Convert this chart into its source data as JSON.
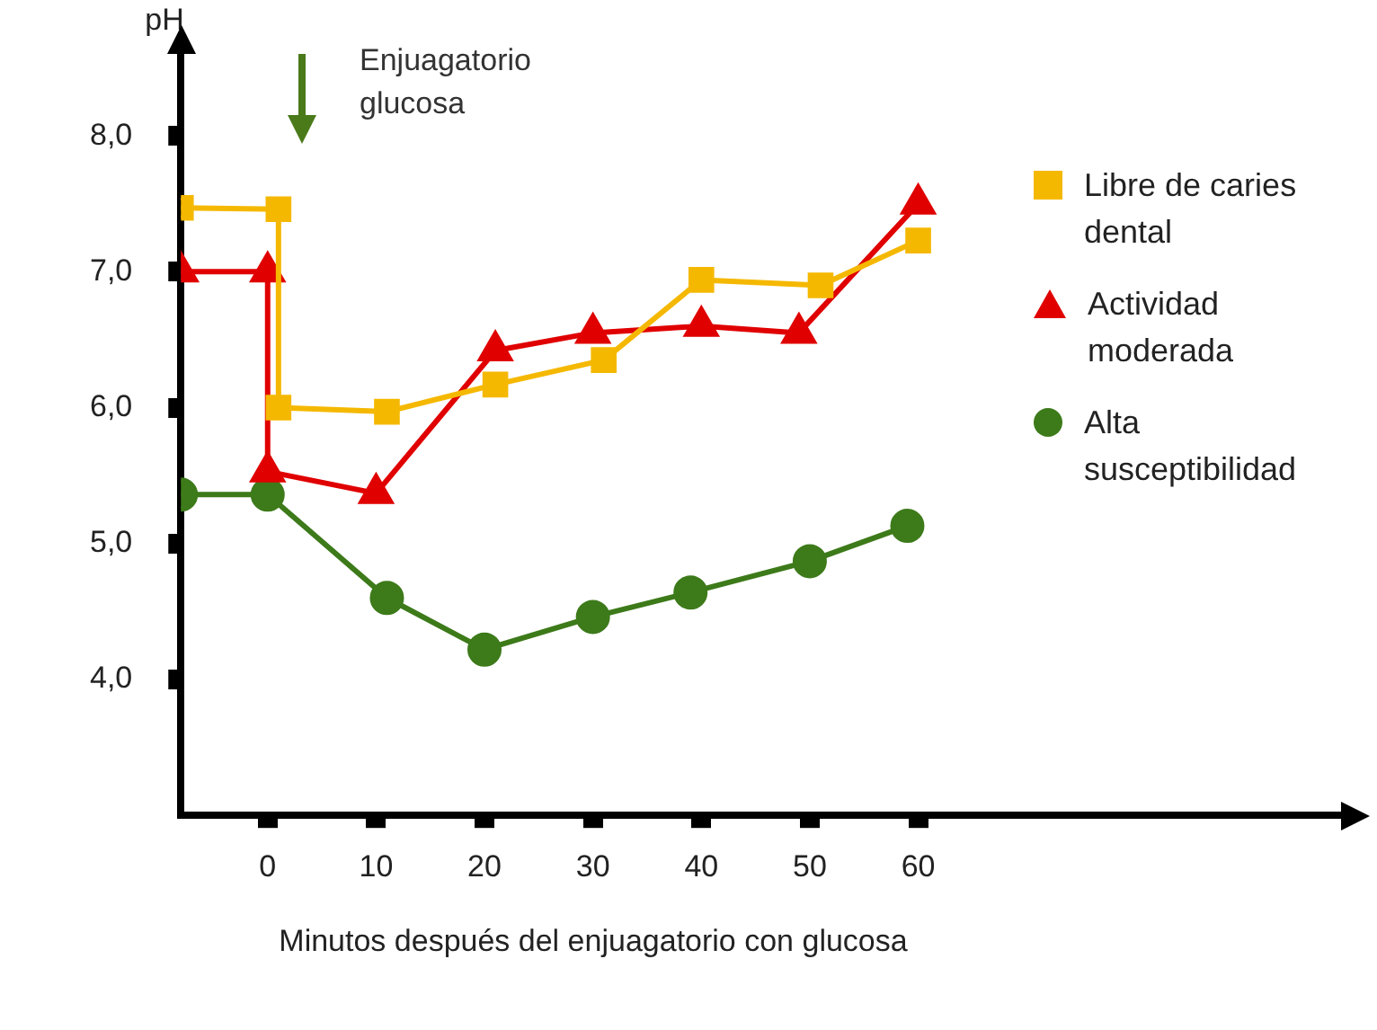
{
  "chart_data": {
    "type": "line",
    "xlabel": "Minutos después del enjuagatorio con glucosa",
    "ylabel": "pH",
    "xlim": [
      -8,
      99
    ],
    "xticks": [
      0,
      10,
      20,
      30,
      40,
      50,
      60
    ],
    "ylim": [
      3,
      8.6
    ],
    "yticks": [
      {
        "value": 4,
        "label": "4,0"
      },
      {
        "value": 5,
        "label": "5,0"
      },
      {
        "value": 6,
        "label": "6,0"
      },
      {
        "value": 7,
        "label": "7,0"
      },
      {
        "value": 8,
        "label": "8,0"
      }
    ],
    "grid": false,
    "legend": "right",
    "line_style": "solid",
    "annotations": [
      "Enjuagatorio glucosa"
    ],
    "series": [
      {
        "name": "Libre de caries dental",
        "color": "#f5b800",
        "marker": "square",
        "x": [
          -8,
          1,
          1,
          11,
          21,
          31,
          40,
          51,
          60
        ],
        "values": [
          7.47,
          7.46,
          6.0,
          5.97,
          6.17,
          6.35,
          6.94,
          6.9,
          7.23
        ]
      },
      {
        "name": "Actividad moderada",
        "color": "#e00000",
        "marker": "triangle",
        "x": [
          -8,
          0,
          0,
          10,
          21,
          30,
          40,
          49,
          60
        ],
        "values": [
          7.0,
          7.0,
          5.53,
          5.37,
          6.42,
          6.55,
          6.6,
          6.55,
          7.5
        ]
      },
      {
        "name": "Alta susceptibilidad",
        "color": "#3d7a1a",
        "marker": "circle",
        "x": [
          -8,
          0,
          11,
          20,
          30,
          39,
          50,
          59
        ],
        "values": [
          5.36,
          5.36,
          4.6,
          4.22,
          4.46,
          4.64,
          4.87,
          5.13
        ]
      }
    ]
  }
}
